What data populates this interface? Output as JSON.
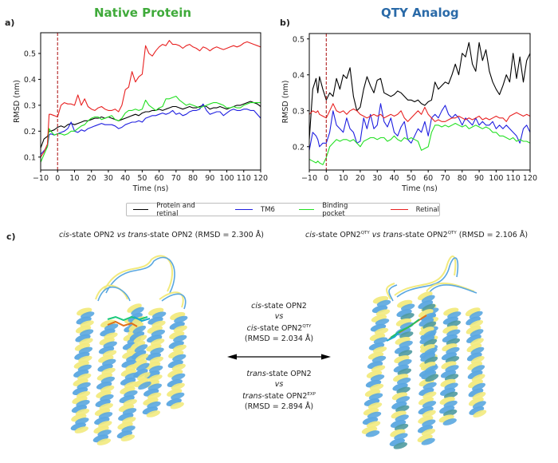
{
  "panels": {
    "a": {
      "letter": "a)",
      "title": "Native Protein",
      "title_color": "#3faa3a"
    },
    "b": {
      "letter": "b)",
      "title": "QTY Analog",
      "title_color": "#2a6aa8"
    },
    "c": {
      "letter": "c)"
    }
  },
  "legend": {
    "items": [
      {
        "label": "Protein and retinal",
        "color": "#000000"
      },
      {
        "label": "TM6",
        "color": "#1f1fe0"
      },
      {
        "label": "Binding pocket",
        "color": "#22e022"
      },
      {
        "label": "Retinal",
        "color": "#e82020"
      }
    ]
  },
  "chart_data": [
    {
      "type": "line",
      "title": "Native Protein",
      "xlabel": "Time (ns)",
      "ylabel": "RMSD (nm)",
      "xlim": [
        -10,
        120
      ],
      "ylim": [
        0.05,
        0.58
      ],
      "xticks": [
        -10,
        0,
        10,
        20,
        30,
        40,
        50,
        60,
        70,
        80,
        90,
        100,
        110,
        120
      ],
      "yticks": [
        0.1,
        0.2,
        0.3,
        0.4,
        0.5
      ],
      "vline": {
        "x": 0,
        "style": "dashed",
        "color": "#b22222"
      },
      "x": [
        -10,
        -8,
        -6,
        -5,
        -4,
        -2,
        0,
        2,
        4,
        6,
        8,
        10,
        12,
        14,
        16,
        18,
        20,
        22,
        24,
        26,
        28,
        30,
        32,
        34,
        36,
        38,
        40,
        42,
        44,
        46,
        48,
        50,
        52,
        54,
        56,
        58,
        60,
        62,
        64,
        66,
        68,
        70,
        72,
        74,
        76,
        78,
        80,
        82,
        84,
        86,
        88,
        90,
        92,
        94,
        96,
        98,
        100,
        102,
        104,
        106,
        108,
        110,
        112,
        114,
        116,
        118,
        120
      ],
      "series": [
        {
          "name": "Protein and retinal",
          "color": "#000000",
          "values": [
            0.135,
            0.17,
            0.18,
            0.2,
            0.2,
            0.205,
            0.215,
            0.22,
            0.215,
            0.225,
            0.23,
            0.225,
            0.23,
            0.235,
            0.24,
            0.24,
            0.245,
            0.25,
            0.25,
            0.255,
            0.25,
            0.255,
            0.25,
            0.245,
            0.24,
            0.245,
            0.25,
            0.255,
            0.26,
            0.265,
            0.26,
            0.27,
            0.275,
            0.275,
            0.28,
            0.28,
            0.285,
            0.28,
            0.285,
            0.29,
            0.295,
            0.295,
            0.29,
            0.285,
            0.29,
            0.295,
            0.29,
            0.29,
            0.295,
            0.3,
            0.295,
            0.285,
            0.29,
            0.29,
            0.295,
            0.29,
            0.285,
            0.29,
            0.295,
            0.3,
            0.3,
            0.305,
            0.31,
            0.315,
            0.31,
            0.305,
            0.295
          ]
        },
        {
          "name": "TM6",
          "color": "#1f1fe0",
          "values": [
            0.11,
            0.125,
            0.14,
            0.185,
            0.19,
            0.185,
            0.19,
            0.195,
            0.2,
            0.21,
            0.235,
            0.2,
            0.195,
            0.205,
            0.2,
            0.21,
            0.215,
            0.22,
            0.225,
            0.23,
            0.225,
            0.225,
            0.225,
            0.22,
            0.21,
            0.215,
            0.225,
            0.23,
            0.235,
            0.235,
            0.24,
            0.235,
            0.25,
            0.255,
            0.26,
            0.26,
            0.265,
            0.27,
            0.265,
            0.27,
            0.28,
            0.265,
            0.27,
            0.26,
            0.265,
            0.275,
            0.28,
            0.28,
            0.285,
            0.305,
            0.28,
            0.265,
            0.27,
            0.275,
            0.275,
            0.26,
            0.27,
            0.28,
            0.285,
            0.28,
            0.28,
            0.285,
            0.285,
            0.28,
            0.28,
            0.265,
            0.25
          ]
        },
        {
          "name": "Binding pocket",
          "color": "#22e022",
          "values": [
            0.08,
            0.11,
            0.14,
            0.21,
            0.2,
            0.185,
            0.19,
            0.19,
            0.185,
            0.19,
            0.2,
            0.2,
            0.21,
            0.22,
            0.225,
            0.24,
            0.25,
            0.255,
            0.255,
            0.245,
            0.25,
            0.255,
            0.26,
            0.245,
            0.24,
            0.25,
            0.27,
            0.28,
            0.28,
            0.285,
            0.28,
            0.285,
            0.32,
            0.3,
            0.29,
            0.28,
            0.29,
            0.295,
            0.325,
            0.325,
            0.33,
            0.335,
            0.32,
            0.31,
            0.3,
            0.305,
            0.3,
            0.295,
            0.29,
            0.295,
            0.3,
            0.305,
            0.31,
            0.31,
            0.305,
            0.3,
            0.29,
            0.29,
            0.295,
            0.29,
            0.29,
            0.3,
            0.305,
            0.31,
            0.31,
            0.31,
            0.31
          ]
        },
        {
          "name": "Retinal",
          "color": "#e82020",
          "values": [
            0.1,
            0.12,
            0.15,
            0.265,
            0.265,
            0.26,
            0.255,
            0.3,
            0.31,
            0.305,
            0.305,
            0.3,
            0.34,
            0.3,
            0.325,
            0.295,
            0.285,
            0.28,
            0.29,
            0.295,
            0.285,
            0.28,
            0.28,
            0.285,
            0.275,
            0.3,
            0.36,
            0.37,
            0.43,
            0.39,
            0.41,
            0.42,
            0.53,
            0.5,
            0.49,
            0.51,
            0.525,
            0.535,
            0.53,
            0.55,
            0.535,
            0.535,
            0.53,
            0.52,
            0.53,
            0.535,
            0.525,
            0.52,
            0.51,
            0.525,
            0.52,
            0.51,
            0.52,
            0.525,
            0.52,
            0.515,
            0.52,
            0.525,
            0.53,
            0.525,
            0.53,
            0.54,
            0.545,
            0.54,
            0.535,
            0.53,
            0.525
          ]
        }
      ]
    },
    {
      "type": "line",
      "title": "QTY Analog",
      "xlabel": "Time (ns)",
      "ylabel": "RMSD (nm)",
      "xlim": [
        -10,
        120
      ],
      "ylim": [
        0.135,
        0.515
      ],
      "xticks": [
        -10,
        0,
        10,
        20,
        30,
        40,
        50,
        60,
        70,
        80,
        90,
        100,
        110,
        120
      ],
      "yticks": [
        0.2,
        0.3,
        0.4,
        0.5
      ],
      "vline": {
        "x": 0,
        "style": "dashed",
        "color": "#b22222"
      },
      "x": [
        -10,
        -8,
        -6,
        -5,
        -4,
        -2,
        0,
        2,
        4,
        6,
        8,
        10,
        12,
        14,
        16,
        18,
        20,
        22,
        24,
        26,
        28,
        30,
        32,
        34,
        36,
        38,
        40,
        42,
        44,
        46,
        48,
        50,
        52,
        54,
        56,
        58,
        60,
        62,
        64,
        66,
        68,
        70,
        72,
        74,
        76,
        78,
        80,
        82,
        84,
        86,
        88,
        90,
        92,
        94,
        96,
        98,
        100,
        102,
        104,
        106,
        108,
        110,
        112,
        114,
        116,
        118,
        120
      ],
      "series": [
        {
          "name": "Protein and retinal",
          "color": "#000000",
          "values": [
            0.22,
            0.36,
            0.39,
            0.35,
            0.395,
            0.36,
            0.33,
            0.35,
            0.34,
            0.39,
            0.36,
            0.4,
            0.39,
            0.42,
            0.34,
            0.3,
            0.31,
            0.36,
            0.395,
            0.37,
            0.35,
            0.385,
            0.39,
            0.35,
            0.345,
            0.34,
            0.345,
            0.355,
            0.35,
            0.34,
            0.33,
            0.33,
            0.325,
            0.33,
            0.32,
            0.315,
            0.325,
            0.33,
            0.38,
            0.36,
            0.37,
            0.38,
            0.375,
            0.4,
            0.43,
            0.4,
            0.46,
            0.45,
            0.49,
            0.43,
            0.41,
            0.49,
            0.44,
            0.47,
            0.41,
            0.38,
            0.36,
            0.345,
            0.37,
            0.4,
            0.38,
            0.46,
            0.39,
            0.45,
            0.38,
            0.44,
            0.46
          ]
        },
        {
          "name": "TM6",
          "color": "#1f1fe0",
          "values": [
            0.19,
            0.24,
            0.23,
            0.22,
            0.2,
            0.21,
            0.21,
            0.24,
            0.3,
            0.26,
            0.25,
            0.24,
            0.28,
            0.25,
            0.24,
            0.21,
            0.215,
            0.28,
            0.25,
            0.29,
            0.25,
            0.26,
            0.32,
            0.27,
            0.255,
            0.28,
            0.24,
            0.23,
            0.255,
            0.27,
            0.22,
            0.21,
            0.23,
            0.25,
            0.24,
            0.27,
            0.23,
            0.28,
            0.29,
            0.28,
            0.3,
            0.315,
            0.29,
            0.28,
            0.29,
            0.28,
            0.26,
            0.28,
            0.27,
            0.26,
            0.28,
            0.26,
            0.27,
            0.26,
            0.26,
            0.27,
            0.25,
            0.26,
            0.25,
            0.26,
            0.25,
            0.24,
            0.23,
            0.21,
            0.25,
            0.26,
            0.24
          ]
        },
        {
          "name": "Binding pocket",
          "color": "#22e022",
          "values": [
            0.165,
            0.16,
            0.155,
            0.16,
            0.155,
            0.15,
            0.17,
            0.2,
            0.21,
            0.22,
            0.215,
            0.22,
            0.22,
            0.215,
            0.22,
            0.21,
            0.2,
            0.215,
            0.22,
            0.225,
            0.225,
            0.22,
            0.225,
            0.225,
            0.215,
            0.22,
            0.23,
            0.22,
            0.215,
            0.225,
            0.22,
            0.225,
            0.22,
            0.215,
            0.19,
            0.195,
            0.2,
            0.24,
            0.26,
            0.26,
            0.255,
            0.26,
            0.255,
            0.26,
            0.265,
            0.26,
            0.255,
            0.26,
            0.25,
            0.255,
            0.26,
            0.255,
            0.25,
            0.255,
            0.25,
            0.24,
            0.24,
            0.23,
            0.23,
            0.225,
            0.22,
            0.225,
            0.215,
            0.22,
            0.215,
            0.215,
            0.21
          ]
        },
        {
          "name": "Retinal",
          "color": "#e82020",
          "values": [
            0.29,
            0.3,
            0.295,
            0.3,
            0.29,
            0.285,
            0.28,
            0.3,
            0.32,
            0.3,
            0.295,
            0.3,
            0.29,
            0.3,
            0.305,
            0.3,
            0.29,
            0.285,
            0.28,
            0.285,
            0.29,
            0.285,
            0.29,
            0.28,
            0.285,
            0.29,
            0.285,
            0.29,
            0.3,
            0.28,
            0.27,
            0.28,
            0.29,
            0.3,
            0.29,
            0.31,
            0.29,
            0.28,
            0.27,
            0.275,
            0.27,
            0.27,
            0.275,
            0.28,
            0.28,
            0.285,
            0.28,
            0.275,
            0.28,
            0.275,
            0.28,
            0.285,
            0.275,
            0.28,
            0.275,
            0.28,
            0.285,
            0.28,
            0.28,
            0.27,
            0.285,
            0.29,
            0.295,
            0.29,
            0.285,
            0.29,
            0.285
          ]
        }
      ]
    }
  ],
  "structures": {
    "left_caption": {
      "italic1": "cis",
      "part1": "-state OPN2 ",
      "italic2": "vs",
      "space": " ",
      "italic3": "trans",
      "part2": "-state OPN2 (RMSD = 2.300 Å)"
    },
    "right_caption": {
      "italic1": "cis",
      "part1": "-state OPN2",
      "sup1": "QTY",
      "space1": " ",
      "italic2": "vs",
      "space2": " ",
      "italic3": "trans",
      "part2": "-state OPN2",
      "sup2": "QTY",
      "part3": " (RMSD = 2.106 Å)"
    },
    "middle_top": {
      "line1_italic": "cis",
      "line1_rest": "-state OPN2",
      "line2": "vs",
      "line3_italic": "cis",
      "line3_rest": "-state OPN2",
      "line3_sup": "QTY",
      "line4": "(RMSD = 2.034 Å)"
    },
    "middle_bottom": {
      "line1_italic": "trans",
      "line1_rest": "-state OPN2",
      "line2": "vs",
      "line3_italic": "trans",
      "line3_rest": "-state OPN2",
      "line3_sup": "EXP",
      "line4": "(RMSD = 2.894 Å)"
    },
    "colors": {
      "blue_ribbon": "#5aa7e0",
      "yellow_ribbon": "#f2ea7e",
      "teal_ribbon": "#4f9aa0"
    }
  }
}
